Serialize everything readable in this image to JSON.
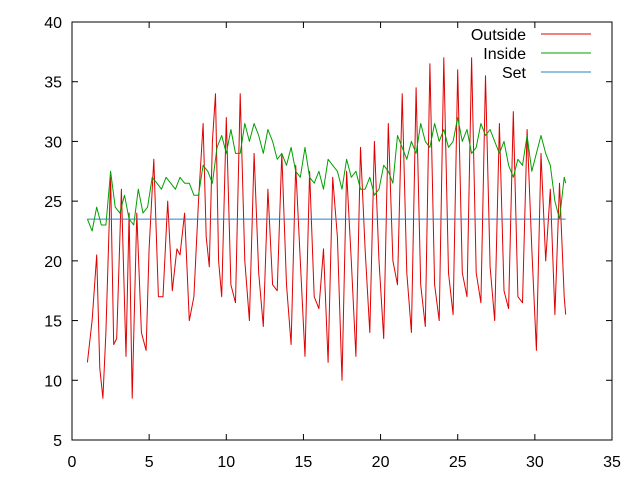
{
  "chart_data": {
    "type": "line",
    "xlim": [
      0,
      35
    ],
    "ylim": [
      5,
      40
    ],
    "xticks": [
      0,
      5,
      10,
      15,
      20,
      25,
      30,
      35
    ],
    "yticks": [
      5,
      10,
      15,
      20,
      25,
      30,
      35,
      40
    ],
    "grid": false,
    "legend_position": "top-right",
    "series": [
      {
        "name": "Outside",
        "color": "#e00000",
        "x": [
          1.0,
          1.3,
          1.6,
          1.8,
          2.0,
          2.2,
          2.5,
          2.7,
          2.9,
          3.2,
          3.5,
          3.7,
          3.9,
          4.2,
          4.5,
          4.8,
          5.0,
          5.3,
          5.6,
          5.9,
          6.2,
          6.5,
          6.8,
          7.0,
          7.3,
          7.6,
          7.9,
          8.2,
          8.5,
          8.7,
          8.9,
          9.1,
          9.3,
          9.5,
          9.7,
          10.0,
          10.3,
          10.6,
          10.9,
          11.2,
          11.5,
          11.8,
          12.1,
          12.4,
          12.7,
          13.0,
          13.3,
          13.6,
          13.9,
          14.2,
          14.5,
          14.8,
          15.1,
          15.4,
          15.7,
          16.0,
          16.3,
          16.6,
          16.9,
          17.2,
          17.5,
          17.8,
          18.1,
          18.4,
          18.7,
          19.0,
          19.3,
          19.6,
          19.9,
          20.2,
          20.5,
          20.8,
          21.1,
          21.4,
          21.7,
          22.0,
          22.3,
          22.6,
          22.9,
          23.2,
          23.5,
          23.8,
          24.1,
          24.4,
          24.7,
          25.0,
          25.3,
          25.6,
          25.9,
          26.2,
          26.5,
          26.8,
          27.1,
          27.4,
          27.7,
          28.0,
          28.3,
          28.6,
          28.9,
          29.2,
          29.5,
          29.8,
          30.1,
          30.4,
          30.7,
          31.0,
          31.3,
          31.6,
          31.9,
          32.0
        ],
        "y": [
          11.5,
          15.0,
          20.5,
          11.0,
          8.5,
          14.0,
          27.0,
          13.0,
          13.5,
          26.0,
          12.0,
          24.0,
          8.5,
          24.0,
          14.0,
          12.5,
          21.0,
          28.5,
          17.0,
          17.0,
          25.0,
          17.5,
          21.0,
          20.5,
          24.0,
          15.0,
          17.0,
          25.0,
          31.5,
          22.0,
          19.5,
          30.0,
          34.0,
          20.0,
          17.0,
          32.0,
          18.0,
          16.5,
          34.0,
          20.0,
          15.0,
          29.0,
          19.0,
          14.5,
          26.0,
          18.0,
          17.5,
          29.0,
          18.0,
          13.0,
          28.0,
          20.0,
          12.0,
          27.5,
          17.0,
          16.0,
          21.0,
          11.5,
          27.0,
          22.0,
          10.0,
          27.5,
          20.0,
          12.0,
          29.5,
          21.0,
          14.0,
          30.0,
          20.0,
          13.5,
          31.5,
          20.0,
          18.0,
          34.0,
          19.0,
          14.0,
          34.5,
          18.0,
          14.5,
          36.5,
          18.0,
          15.0,
          37.0,
          19.0,
          15.5,
          36.0,
          19.0,
          17.0,
          37.0,
          19.0,
          16.5,
          35.5,
          19.5,
          15.0,
          31.5,
          17.5,
          16.0,
          32.5,
          17.0,
          16.5,
          31.0,
          21.0,
          12.5,
          29.0,
          20.0,
          26.0,
          15.5,
          26.5,
          17.0,
          15.5
        ]
      },
      {
        "name": "Inside",
        "color": "#00a000",
        "x": [
          1.0,
          1.3,
          1.6,
          1.9,
          2.2,
          2.5,
          2.8,
          3.1,
          3.4,
          3.7,
          4.0,
          4.3,
          4.6,
          4.9,
          5.2,
          5.5,
          5.8,
          6.1,
          6.4,
          6.7,
          7.0,
          7.3,
          7.6,
          7.9,
          8.2,
          8.5,
          8.8,
          9.1,
          9.4,
          9.7,
          10.0,
          10.3,
          10.6,
          10.9,
          11.2,
          11.5,
          11.8,
          12.1,
          12.4,
          12.7,
          13.0,
          13.3,
          13.6,
          13.9,
          14.2,
          14.5,
          14.8,
          15.1,
          15.4,
          15.7,
          16.0,
          16.3,
          16.6,
          16.9,
          17.2,
          17.5,
          17.8,
          18.1,
          18.4,
          18.7,
          19.0,
          19.3,
          19.6,
          19.9,
          20.2,
          20.5,
          20.8,
          21.1,
          21.4,
          21.7,
          22.0,
          22.3,
          22.6,
          22.9,
          23.2,
          23.5,
          23.8,
          24.1,
          24.4,
          24.7,
          25.0,
          25.3,
          25.6,
          25.9,
          26.2,
          26.5,
          26.8,
          27.1,
          27.4,
          27.7,
          28.0,
          28.3,
          28.6,
          28.9,
          29.2,
          29.5,
          29.8,
          30.1,
          30.4,
          30.7,
          31.0,
          31.3,
          31.6,
          31.9,
          32.0
        ],
        "y": [
          23.5,
          22.5,
          24.5,
          23.0,
          23.0,
          27.5,
          24.5,
          24.0,
          25.5,
          23.5,
          23.0,
          26.0,
          24.0,
          24.5,
          27.0,
          26.5,
          26.0,
          27.0,
          26.5,
          26.0,
          27.0,
          26.5,
          26.5,
          25.5,
          25.5,
          28.0,
          27.5,
          26.5,
          29.5,
          30.5,
          29.0,
          31.0,
          29.0,
          29.0,
          31.5,
          30.0,
          31.5,
          30.5,
          29.0,
          31.0,
          30.0,
          28.5,
          29.0,
          28.0,
          29.5,
          27.5,
          27.0,
          29.5,
          27.0,
          26.5,
          27.5,
          26.0,
          28.5,
          28.0,
          27.5,
          26.0,
          28.5,
          27.0,
          27.5,
          26.0,
          26.0,
          27.0,
          25.5,
          26.0,
          28.0,
          27.5,
          26.5,
          30.5,
          29.5,
          28.5,
          30.0,
          29.0,
          31.5,
          30.0,
          29.5,
          31.5,
          30.0,
          31.0,
          29.5,
          30.0,
          32.0,
          30.0,
          31.0,
          29.0,
          29.5,
          31.5,
          30.5,
          31.0,
          30.0,
          29.0,
          30.0,
          28.0,
          27.0,
          28.5,
          28.0,
          30.5,
          27.5,
          29.0,
          30.5,
          29.0,
          28.0,
          25.0,
          23.5,
          27.0,
          26.5
        ]
      },
      {
        "name": "Set",
        "color": "#2a80c0",
        "x": [
          1.0,
          32.0
        ],
        "y": [
          23.5,
          23.5
        ]
      }
    ]
  }
}
